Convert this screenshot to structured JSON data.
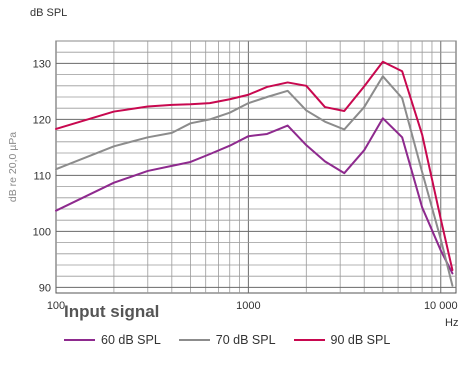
{
  "chart_data": {
    "type": "line",
    "title": "",
    "ylabel": "dB re 20,0 µPa",
    "y_unit": "dB SPL",
    "x_unit": "Hz",
    "x_scale": "log",
    "xlim": [
      100,
      12000
    ],
    "ylim": [
      89,
      134
    ],
    "grid": true,
    "x_ticks": [
      {
        "value": 100,
        "label": "100"
      },
      {
        "value": 1000,
        "label": "1000"
      },
      {
        "value": 10000,
        "label": "10 000"
      }
    ],
    "y_ticks": [
      {
        "value": 90,
        "label": "90"
      },
      {
        "value": 100,
        "label": "100"
      },
      {
        "value": 110,
        "label": "110"
      },
      {
        "value": 120,
        "label": "120"
      },
      {
        "value": 130,
        "label": "130"
      }
    ],
    "legend_title": "Input signal",
    "legend_position": "bottom",
    "series": [
      {
        "name": "60 dB SPL",
        "color": "#8e2a8e",
        "points": [
          [
            100,
            103.7
          ],
          [
            200,
            108.7
          ],
          [
            300,
            110.8
          ],
          [
            400,
            111.7
          ],
          [
            500,
            112.4
          ],
          [
            630,
            113.8
          ],
          [
            800,
            115.3
          ],
          [
            1000,
            117.0
          ],
          [
            1250,
            117.4
          ],
          [
            1600,
            118.9
          ],
          [
            2000,
            115.4
          ],
          [
            2500,
            112.5
          ],
          [
            3150,
            110.4
          ],
          [
            4000,
            114.5
          ],
          [
            5000,
            120.2
          ],
          [
            6300,
            116.8
          ],
          [
            8000,
            104.3
          ],
          [
            10000,
            96.6
          ],
          [
            11500,
            92.5
          ]
        ]
      },
      {
        "name": "70 dB SPL",
        "color": "#8c8c8c",
        "points": [
          [
            100,
            111.1
          ],
          [
            200,
            115.2
          ],
          [
            300,
            116.8
          ],
          [
            400,
            117.6
          ],
          [
            500,
            119.3
          ],
          [
            630,
            120.0
          ],
          [
            800,
            121.2
          ],
          [
            1000,
            122.9
          ],
          [
            1250,
            124.0
          ],
          [
            1600,
            125.1
          ],
          [
            2000,
            121.6
          ],
          [
            2500,
            119.6
          ],
          [
            3150,
            118.2
          ],
          [
            4000,
            122.2
          ],
          [
            5000,
            127.7
          ],
          [
            6300,
            123.8
          ],
          [
            8000,
            110.6
          ],
          [
            10000,
            98.6
          ],
          [
            11500,
            90.3
          ]
        ]
      },
      {
        "name": "90 dB SPL",
        "color": "#c8084f",
        "points": [
          [
            100,
            118.3
          ],
          [
            200,
            121.4
          ],
          [
            300,
            122.3
          ],
          [
            400,
            122.6
          ],
          [
            500,
            122.7
          ],
          [
            630,
            122.9
          ],
          [
            800,
            123.6
          ],
          [
            1000,
            124.4
          ],
          [
            1250,
            125.8
          ],
          [
            1600,
            126.6
          ],
          [
            2000,
            126.0
          ],
          [
            2500,
            122.2
          ],
          [
            3150,
            121.5
          ],
          [
            4000,
            125.9
          ],
          [
            5000,
            130.3
          ],
          [
            6300,
            128.6
          ],
          [
            8000,
            117.3
          ],
          [
            10000,
            102.2
          ],
          [
            11500,
            93.1
          ]
        ]
      }
    ]
  }
}
